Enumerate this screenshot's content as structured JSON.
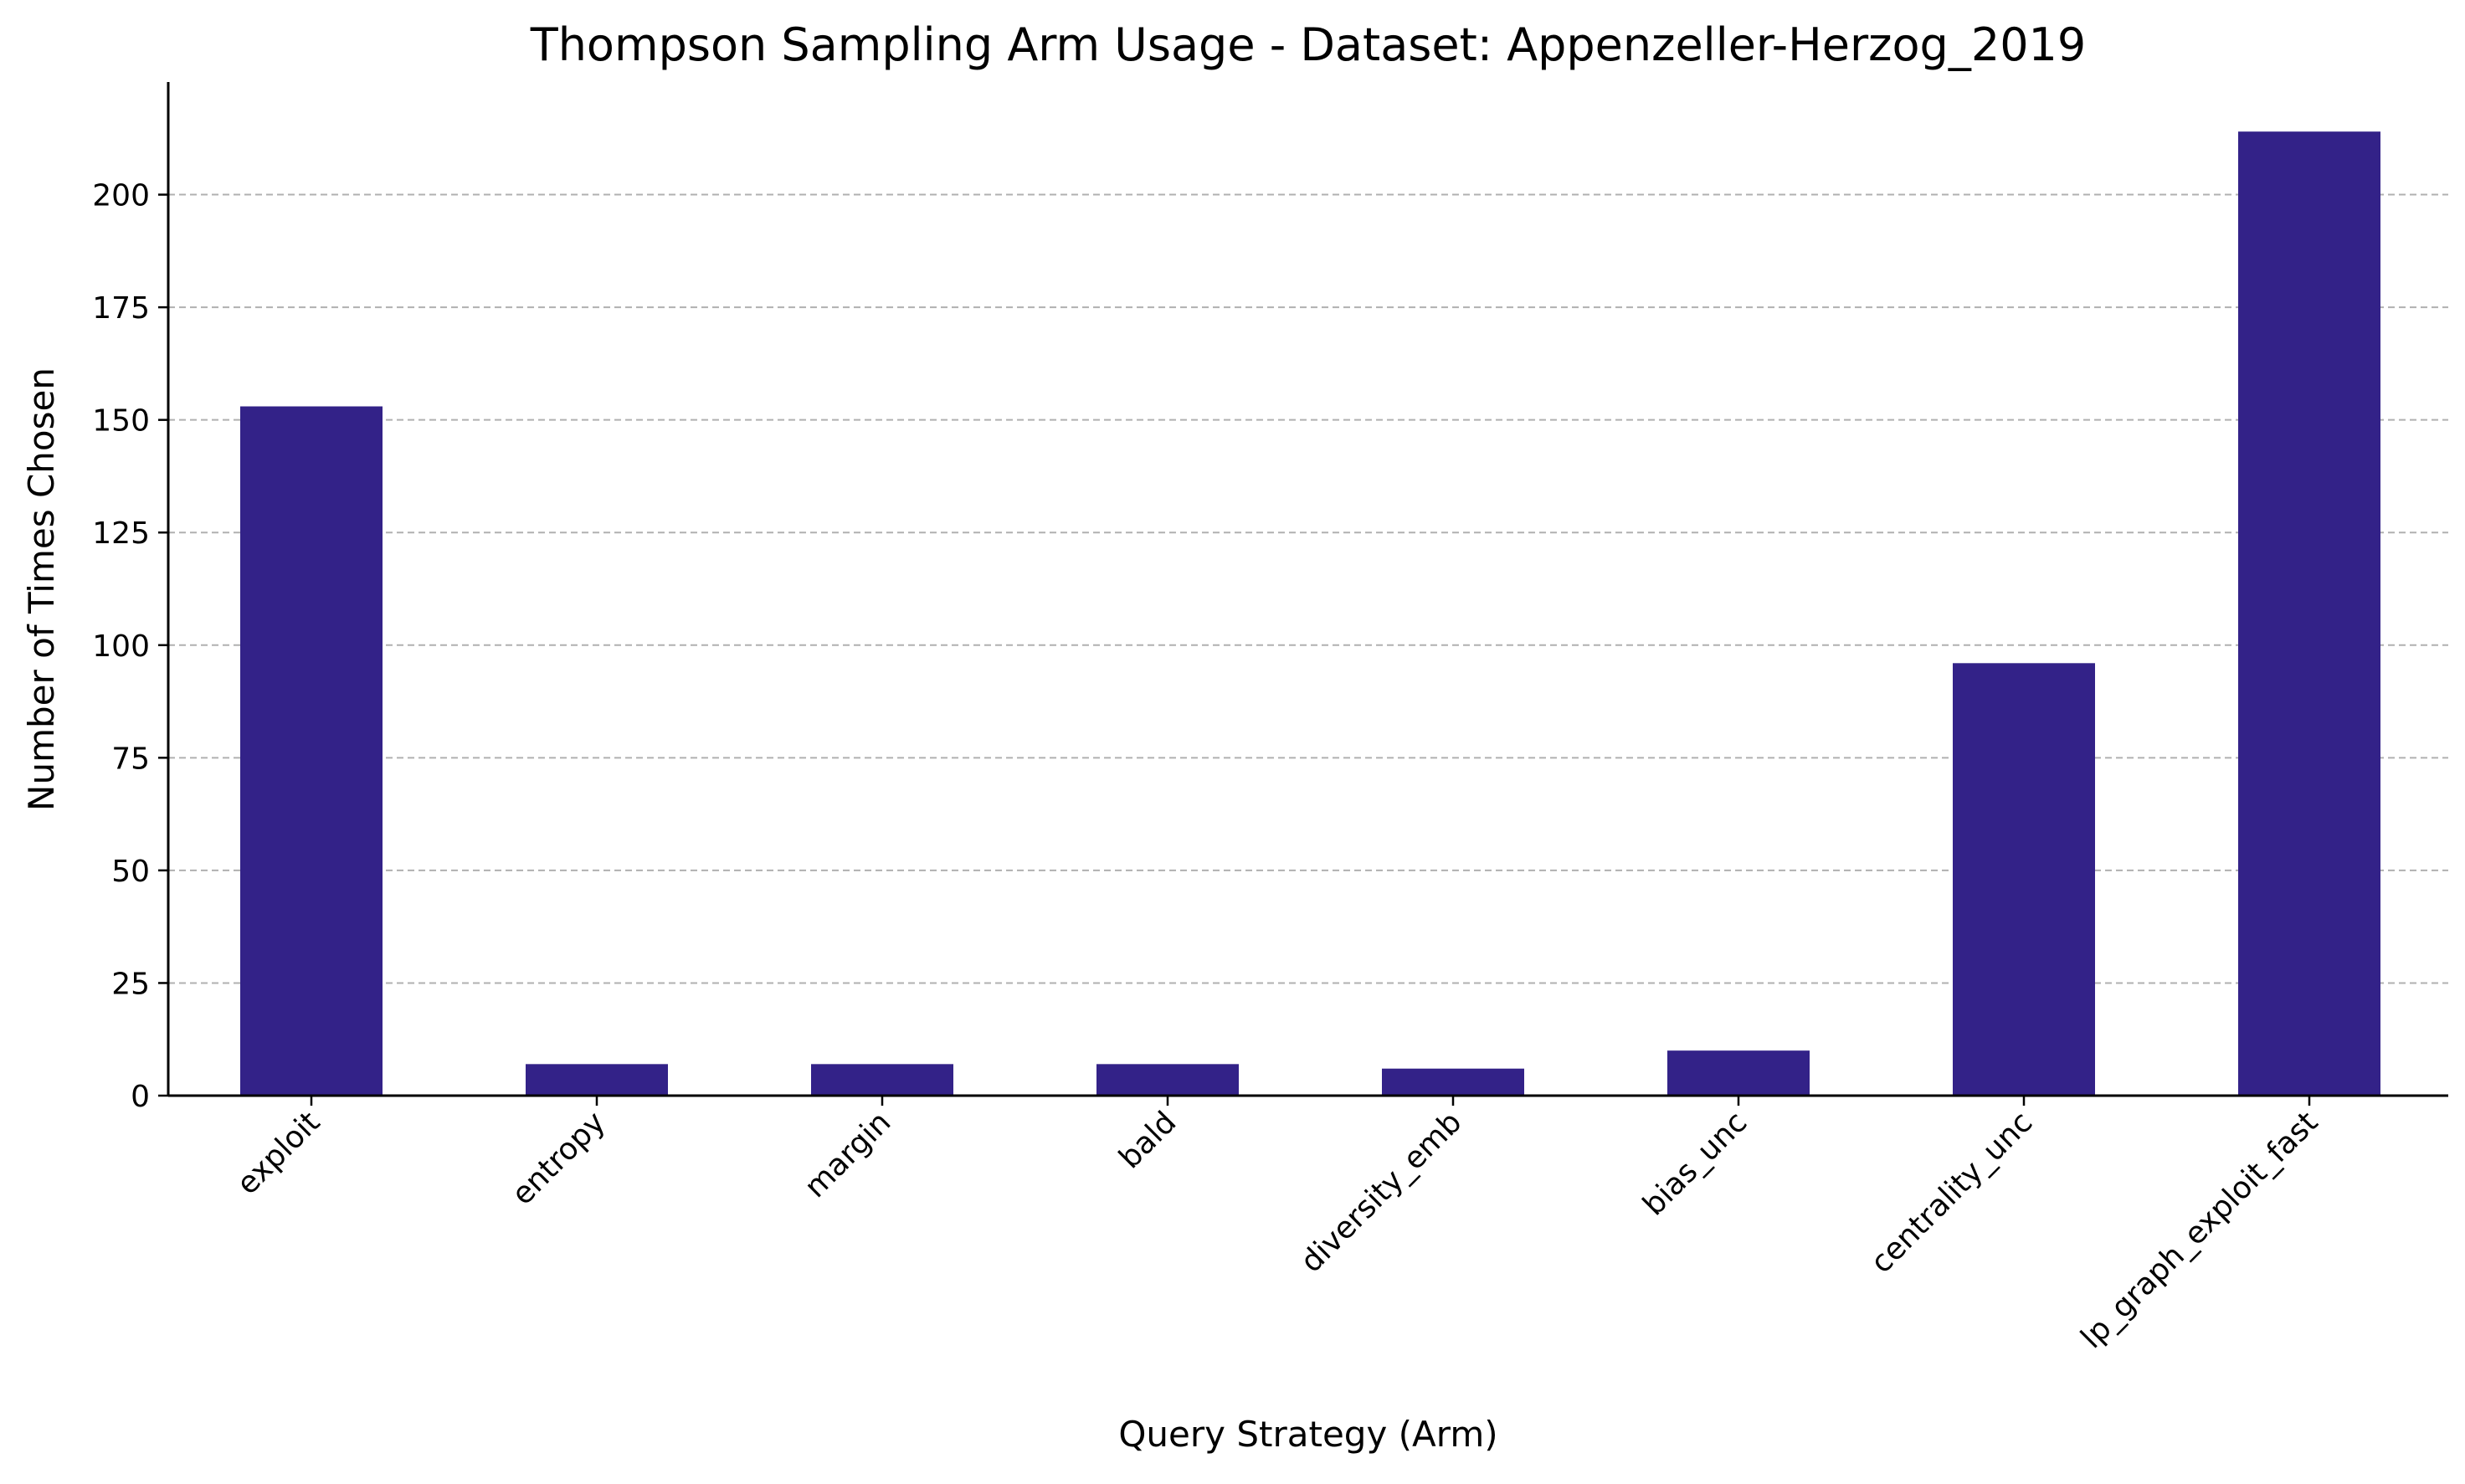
{
  "chart_data": {
    "type": "bar",
    "title": "Thompson Sampling Arm Usage - Dataset: Appenzeller-Herzog_2019",
    "xlabel": "Query Strategy (Arm)",
    "ylabel": "Number of Times Chosen",
    "categories": [
      "exploit",
      "entropy",
      "margin",
      "bald",
      "diversity_emb",
      "bias_unc",
      "centrality_unc",
      "lp_graph_exploit_fast"
    ],
    "values": [
      153,
      7,
      7,
      7,
      6,
      10,
      96,
      214
    ],
    "ylim": [
      0,
      225
    ],
    "yticks": [
      0,
      25,
      50,
      75,
      100,
      125,
      150,
      175,
      200
    ],
    "grid": "y-dashed",
    "legend": "none",
    "bar_color": "#332288",
    "grid_color": "#b0b0b0"
  }
}
